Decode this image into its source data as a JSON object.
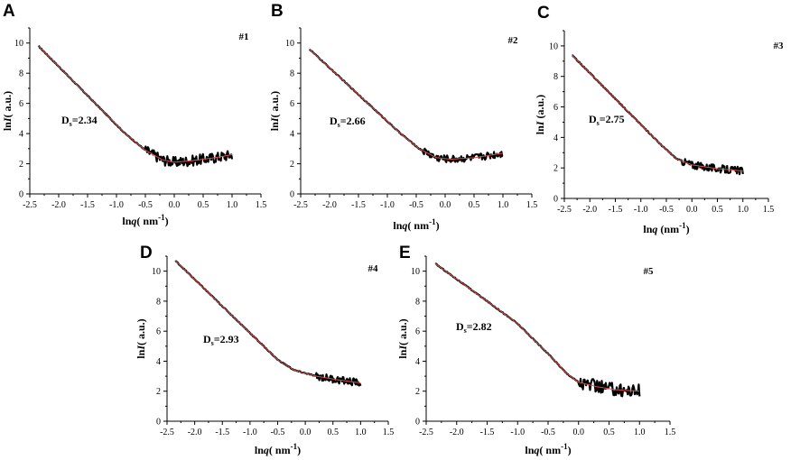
{
  "figure": {
    "layout": "two-rows"
  },
  "chart_data": [
    {
      "type": "line",
      "panel": "A",
      "sample": "#1",
      "ds_prefix": "D",
      "ds_sub": "s",
      "ds_value": "=2.34",
      "xlabel_prefix": "ln",
      "xlabel_var": "q",
      "xlabel_unit": "( nm",
      "xlabel_exp": "-1",
      "xlabel_close": ")",
      "ylabel_prefix": "ln",
      "ylabel_var": "I",
      "ylabel_unit": "( a.u.)",
      "xlim": [
        -2.5,
        1.5
      ],
      "ylim": [
        0,
        11
      ],
      "xticks": [
        "-2.5",
        "-2.0",
        "-1.5",
        "-1.0",
        "-0.5",
        "0.0",
        "0.5",
        "1.0",
        "1.5"
      ],
      "yticks": [
        "0",
        "2",
        "4",
        "6",
        "8",
        "10"
      ],
      "x_start": -2.35,
      "x_end": 1.0,
      "profile": [
        [
          -2.35,
          9.8
        ],
        [
          -0.85,
          4.0
        ],
        [
          -0.5,
          2.9
        ],
        [
          -0.2,
          2.25
        ],
        [
          0.0,
          2.1
        ],
        [
          0.3,
          2.2
        ],
        [
          0.7,
          2.4
        ],
        [
          1.0,
          2.6
        ]
      ],
      "noise_from": -0.5,
      "noise_amp": 0.35
    },
    {
      "type": "line",
      "panel": "B",
      "sample": "#2",
      "ds_prefix": "D",
      "ds_sub": "s",
      "ds_value": "=2.66",
      "xlabel_prefix": "ln",
      "xlabel_var": "q",
      "xlabel_unit": "( nm",
      "xlabel_exp": "-1",
      "xlabel_close": ")",
      "ylabel_prefix": "ln",
      "ylabel_var": "I",
      "ylabel_unit": "( a.u.)",
      "xlim": [
        -2.5,
        1.5
      ],
      "ylim": [
        0,
        11
      ],
      "xticks": [
        "-2.5",
        "-2.0",
        "-1.5",
        "-1.0",
        "-0.5",
        "0.0",
        "0.5",
        "1.0",
        "1.5"
      ],
      "yticks": [
        "0",
        "2",
        "4",
        "6",
        "8",
        "10"
      ],
      "x_start": -2.35,
      "x_end": 1.0,
      "profile": [
        [
          -2.35,
          9.6
        ],
        [
          -0.8,
          4.1
        ],
        [
          -0.45,
          3.0
        ],
        [
          -0.15,
          2.4
        ],
        [
          0.1,
          2.3
        ],
        [
          0.5,
          2.4
        ],
        [
          1.0,
          2.7
        ]
      ],
      "noise_from": -0.4,
      "noise_amp": 0.25
    },
    {
      "type": "line",
      "panel": "C",
      "sample": "#3",
      "ds_prefix": "D",
      "ds_sub": "s",
      "ds_value": "=2.75",
      "xlabel_prefix": "ln",
      "xlabel_var": "q",
      "xlabel_unit": " (nm",
      "xlabel_exp": "-1",
      "xlabel_close": ")",
      "ylabel_prefix": "ln",
      "ylabel_var": "I",
      "ylabel_unit": " (a.u.)",
      "xlim": [
        -2.5,
        1.5
      ],
      "ylim": [
        0,
        11
      ],
      "xticks": [
        "-2.5",
        "-2.0",
        "-1.5",
        "-1.0",
        "-0.5",
        "0.0",
        "0.5",
        "1.0",
        "1.5"
      ],
      "yticks": [
        "0",
        "2",
        "4",
        "6",
        "8",
        "10"
      ],
      "x_start": -2.35,
      "x_end": 1.0,
      "profile": [
        [
          -2.35,
          9.4
        ],
        [
          -0.6,
          3.5
        ],
        [
          -0.3,
          2.6
        ],
        [
          0.0,
          2.2
        ],
        [
          0.5,
          1.95
        ],
        [
          1.0,
          1.8
        ]
      ],
      "noise_from": -0.2,
      "noise_amp": 0.25
    },
    {
      "type": "line",
      "panel": "D",
      "sample": "#4",
      "ds_prefix": "D",
      "ds_sub": "s",
      "ds_value": "=2.93",
      "xlabel_prefix": "ln",
      "xlabel_var": "q",
      "xlabel_unit": "( nm",
      "xlabel_exp": "-1",
      "xlabel_close": ")",
      "ylabel_prefix": "ln",
      "ylabel_var": "I",
      "ylabel_unit": "( a.u.)",
      "xlim": [
        -2.5,
        1.5
      ],
      "ylim": [
        0,
        11
      ],
      "xticks": [
        "-2.5",
        "-2.0",
        "-1.5",
        "-1.0",
        "-0.5",
        "0.0",
        "0.5",
        "1.0",
        "1.5"
      ],
      "yticks": [
        "0",
        "2",
        "4",
        "6",
        "8",
        "10"
      ],
      "x_start": -2.35,
      "x_end": 1.0,
      "profile": [
        [
          -2.35,
          10.7
        ],
        [
          -0.5,
          4.1
        ],
        [
          -0.2,
          3.4
        ],
        [
          0.2,
          3.0
        ],
        [
          0.6,
          2.75
        ],
        [
          1.0,
          2.55
        ]
      ],
      "noise_from": 0.2,
      "noise_amp": 0.25
    },
    {
      "type": "line",
      "panel": "E",
      "sample": "#5",
      "ds_prefix": "D",
      "ds_sub": "s",
      "ds_value": "=2.82",
      "xlabel_prefix": "ln",
      "xlabel_var": "q",
      "xlabel_unit": "( nm",
      "xlabel_exp": "-1",
      "xlabel_close": ")",
      "ylabel_prefix": "ln",
      "ylabel_var": "I",
      "ylabel_unit": "( a.u.)",
      "xlim": [
        -2.5,
        1.5
      ],
      "ylim": [
        0,
        11
      ],
      "xticks": [
        "-2.5",
        "-2.0",
        "-1.5",
        "-1.0",
        "-0.5",
        "0.0",
        "0.5",
        "1.0",
        "1.5"
      ],
      "yticks": [
        "0",
        "2",
        "4",
        "6",
        "8",
        "10"
      ],
      "x_start": -2.35,
      "x_end": 1.0,
      "profile": [
        [
          -2.35,
          10.5
        ],
        [
          -1.5,
          8.0
        ],
        [
          -1.0,
          6.5
        ],
        [
          -0.5,
          4.5
        ],
        [
          -0.2,
          3.2
        ],
        [
          0.0,
          2.6
        ],
        [
          0.3,
          2.3
        ],
        [
          0.6,
          2.1
        ],
        [
          1.0,
          2.0
        ]
      ],
      "noise_from": 0.0,
      "noise_amp": 0.45
    }
  ]
}
